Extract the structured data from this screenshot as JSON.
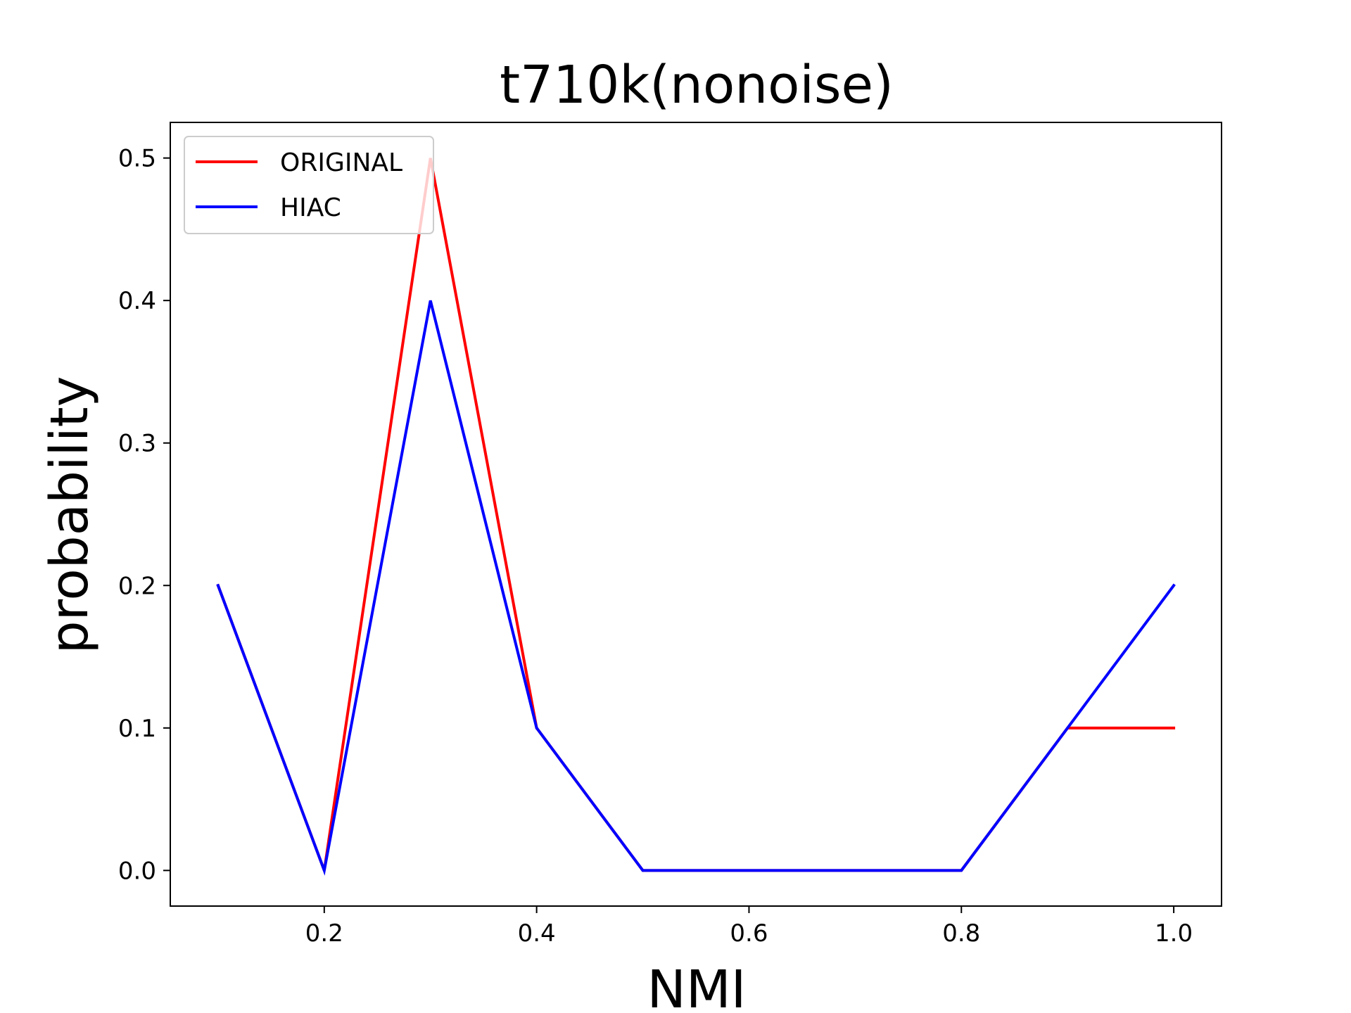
{
  "chart_data": {
    "type": "line",
    "title": "t710k(nonoise)",
    "xlabel": "NMI",
    "ylabel": "probability",
    "xlim": [
      0.055,
      1.045
    ],
    "ylim": [
      -0.025,
      0.525
    ],
    "xticks": [
      0.2,
      0.4,
      0.6,
      0.8,
      1.0
    ],
    "xtick_labels": [
      "0.2",
      "0.4",
      "0.6",
      "0.8",
      "1.0"
    ],
    "yticks": [
      0.0,
      0.1,
      0.2,
      0.3,
      0.4,
      0.5
    ],
    "ytick_labels": [
      "0.0",
      "0.1",
      "0.2",
      "0.3",
      "0.4",
      "0.5"
    ],
    "grid": false,
    "legend_position": "top-left",
    "series": [
      {
        "name": "ORIGINAL",
        "color": "#ff0000",
        "x": [
          0.1,
          0.2,
          0.3,
          0.4,
          0.5,
          0.6,
          0.7,
          0.8,
          0.9,
          1.0
        ],
        "y": [
          0.2,
          0.0,
          0.5,
          0.1,
          0.0,
          0.0,
          0.0,
          0.0,
          0.1,
          0.1
        ]
      },
      {
        "name": "HIAC",
        "color": "#0000ff",
        "x": [
          0.1,
          0.2,
          0.3,
          0.4,
          0.5,
          0.6,
          0.7,
          0.8,
          0.9,
          1.0
        ],
        "y": [
          0.2,
          0.0,
          0.4,
          0.1,
          0.0,
          0.0,
          0.0,
          0.0,
          0.1,
          0.2
        ]
      }
    ]
  }
}
